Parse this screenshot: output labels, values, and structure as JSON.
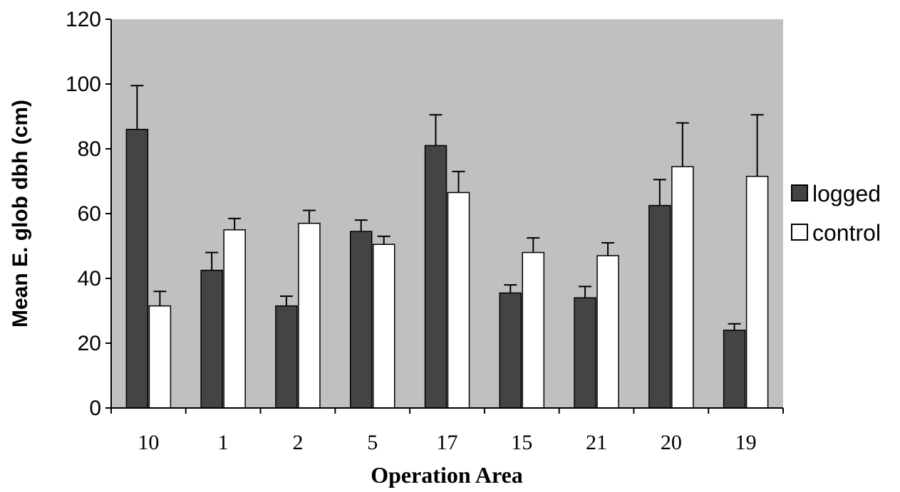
{
  "chart_data": {
    "type": "bar",
    "xlabel": "Operation Area",
    "ylabel": "Mean E. glob dbh (cm)",
    "ylim": [
      0,
      120
    ],
    "yticks": [
      0,
      20,
      40,
      60,
      80,
      100,
      120
    ],
    "categories": [
      "10",
      "1",
      "2",
      "5",
      "17",
      "15",
      "21",
      "20",
      "19"
    ],
    "series": [
      {
        "name": "logged",
        "color": "#444444",
        "values": [
          86,
          42.5,
          31.5,
          54.5,
          81,
          35.5,
          34,
          62.5,
          24
        ],
        "errors": [
          13.5,
          5.5,
          3,
          3.5,
          9.5,
          2.5,
          3.5,
          8,
          2
        ]
      },
      {
        "name": "control",
        "color": "#ffffff",
        "values": [
          31.5,
          55,
          57,
          50.5,
          66.5,
          48,
          47,
          74.5,
          71.5
        ],
        "errors": [
          4.5,
          3.5,
          4,
          2.5,
          6.5,
          4.5,
          4,
          13.5,
          19
        ]
      }
    ],
    "legend_position": "right",
    "plot_background": "#c0c0c0",
    "grid": false
  }
}
